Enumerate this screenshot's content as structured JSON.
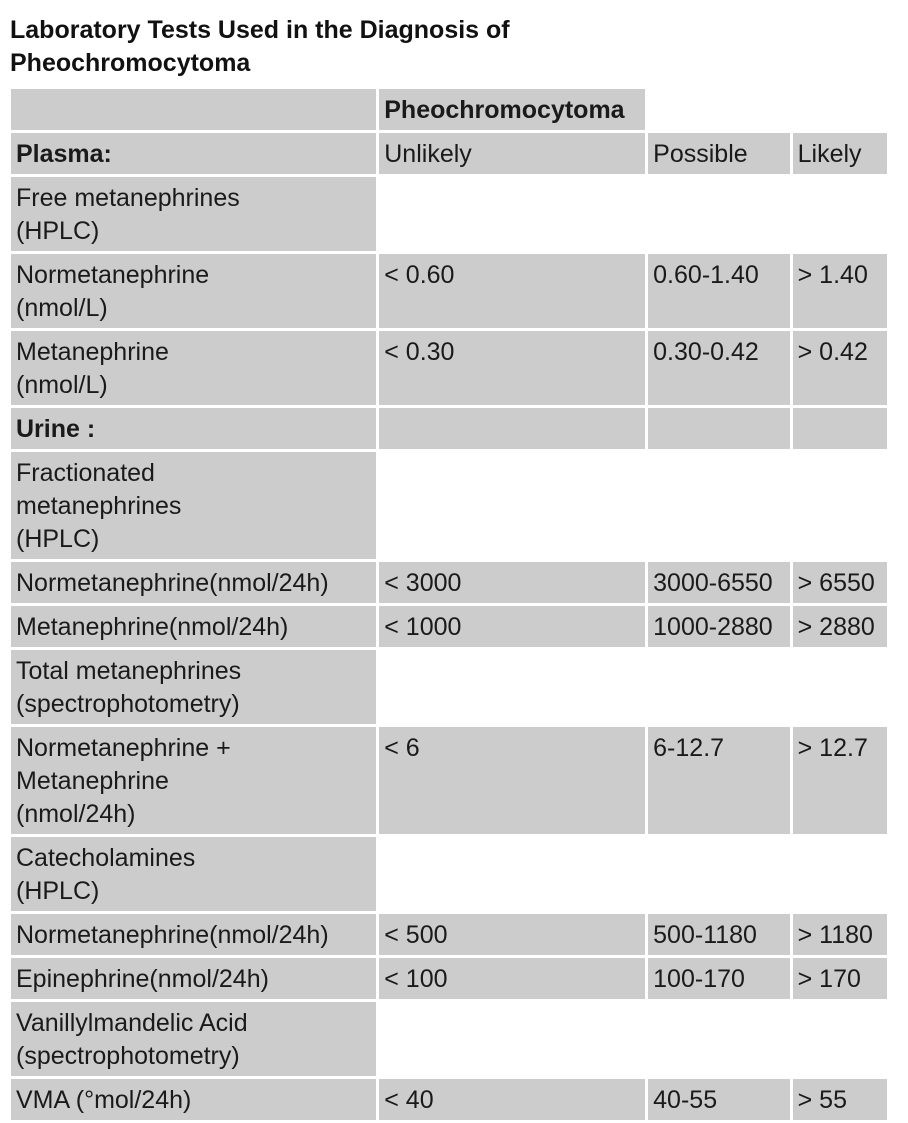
{
  "title_line1": "Laboratory Tests Used in the Diagnosis of",
  "title_line2": "Pheochromocytoma",
  "table": {
    "group_header": "Pheochromocytoma",
    "plasma_label": "Plasma:",
    "col_unlikely": "Unlikely",
    "col_possible": "Possible",
    "col_likely": "Likely",
    "rows": [
      {
        "l1": "Free metanephrines",
        "l2": "(HPLC)",
        "l3": "",
        "u": "",
        "p": "",
        "k": ""
      },
      {
        "l1": "Normetanephrine",
        "l2": "(nmol/L)",
        "l3": "",
        "u": "< 0.60",
        "p": "0.60-1.40",
        "k": "> 1.40"
      },
      {
        "l1": "Metanephrine",
        "l2": "(nmol/L)",
        "l3": "",
        "u": "< 0.30",
        "p": "0.30-0.42",
        "k": "> 0.42"
      },
      {
        "l1": "Urine :",
        "l2": "",
        "l3": "",
        "u": "",
        "p": "",
        "k": ""
      },
      {
        "l1": "Fractionated",
        "l2": "metanephrines",
        "l3": "(HPLC)",
        "u": "",
        "p": "",
        "k": ""
      },
      {
        "l1": "Normetanephrine(nmol/24h)",
        "l2": "",
        "l3": "",
        "u": "< 3000",
        "p": "3000-6550",
        "k": "> 6550"
      },
      {
        "l1": "Metanephrine(nmol/24h)",
        "l2": "",
        "l3": "",
        "u": "< 1000",
        "p": "1000-2880",
        "k": "> 2880"
      },
      {
        "l1": "Total metanephrines",
        "l2": "(spectrophotometry)",
        "l3": "",
        "u": "",
        "p": "",
        "k": ""
      },
      {
        "l1": "Normetanephrine +",
        "l2": "Metanephrine",
        "l3": "(nmol/24h)",
        "u": "< 6",
        "p": "6-12.7",
        "k": "> 12.7"
      },
      {
        "l1": "Catecholamines",
        "l2": "(HPLC)",
        "l3": "",
        "u": "",
        "p": "",
        "k": ""
      },
      {
        "l1": "Normetanephrine(nmol/24h)",
        "l2": "",
        "l3": "",
        "u": "< 500",
        "p": "500-1180",
        "k": "> 1180"
      },
      {
        "l1": "Epinephrine(nmol/24h)",
        "l2": "",
        "l3": "",
        "u": "< 100",
        "p": "100-170",
        "k": "> 170"
      },
      {
        "l1": "Vanillylmandelic Acid",
        "l2": "(spectrophotometry)",
        "l3": "",
        "u": "",
        "p": "",
        "k": ""
      },
      {
        "l1": "VMA (°mol/24h)",
        "l2": "",
        "l3": "",
        "u": "< 40",
        "p": "40-55",
        "k": "> 55"
      }
    ]
  },
  "colors": {
    "cell_gray": "#cccccc",
    "cell_white": "#ffffff",
    "text": "#1a1a1a"
  }
}
